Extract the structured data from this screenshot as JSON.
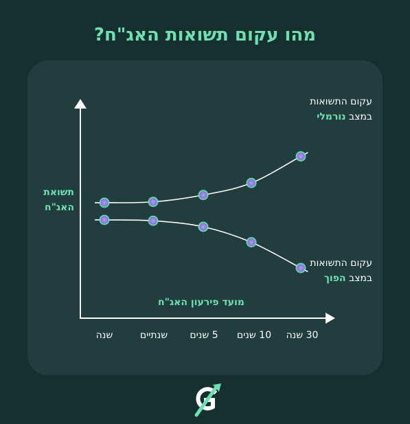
{
  "title": "מהו עקום תשואות האג\"ח?",
  "y_axis_label_line1": "תשואת",
  "y_axis_label_line2": "האג\"ח",
  "x_axis_title": "מועד פירעון האג\"ח",
  "normal_curve_label": {
    "line1": "עקום התשואות",
    "line2_prefix": "במצב",
    "line2_highlight": "נורמלי"
  },
  "inverted_curve_label": {
    "line1": "עקום התשואות",
    "line2_prefix": "במצב",
    "line2_highlight": "הפוך"
  },
  "x_ticks": [
    "שנה",
    "שנתיים",
    "5 שנים",
    "10 שנים",
    "30 שנה"
  ],
  "colors": {
    "accent": "#6ee0b4",
    "point": "#9a86e6",
    "background": "#15302e",
    "card": "#213d3d"
  },
  "chart_data": {
    "type": "line",
    "categories": [
      "שנה",
      "שנתיים",
      "5 שנים",
      "10 שנים",
      "30 שנה"
    ],
    "series": [
      {
        "curve": "normal",
        "values": [
          1.0,
          1.05,
          1.45,
          2.15,
          3.7
        ]
      },
      {
        "curve": "inverted",
        "values": [
          0.0,
          -0.05,
          -0.4,
          -1.3,
          -2.8
        ]
      }
    ]
  }
}
